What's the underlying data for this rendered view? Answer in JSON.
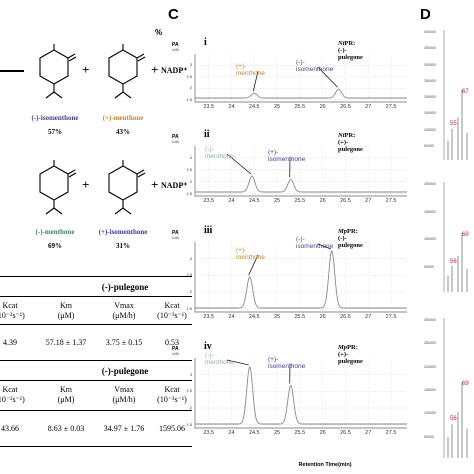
{
  "panel_labels": {
    "c": "C",
    "d": "D"
  },
  "top_left_fragment": "%",
  "reaction1": {
    "products": [
      "(-)-isomenthone",
      "(+)-menthone"
    ],
    "percents": [
      "57%",
      "43%"
    ],
    "cofactor": "NADP⁺",
    "plus": "+"
  },
  "reaction2": {
    "products": [
      "(-)-menthone",
      "(+)-isomenthone"
    ],
    "percents": [
      "69%",
      "31%"
    ],
    "cofactor": "NADP⁺",
    "plus": "+"
  },
  "table1": {
    "title": "(-)-pulegone",
    "headers": [
      [
        "Kcat",
        "(10⁻²s⁻¹)"
      ],
      [
        "Km",
        "(μM)"
      ],
      [
        "Vmax",
        "(μM/h)"
      ],
      [
        "Kcat",
        "(10⁻³s⁻¹)"
      ]
    ],
    "values": [
      "4.39",
      "57.18 ± 1.37",
      "3.75 ± 0.15",
      "0.53"
    ]
  },
  "table2": {
    "title": "(-)-pulegone",
    "headers": [
      [
        "Kcat",
        "(10⁻²s⁻¹)"
      ],
      [
        "Km",
        "(μM)"
      ],
      [
        "Vmax",
        "(μM/h)"
      ],
      [
        "Kcat",
        "(10⁻³s⁻¹)"
      ]
    ],
    "values": [
      "43.66",
      "8.63 ± 0.03",
      "34.97 ± 1.76",
      "1595.06"
    ]
  },
  "chromatograms": {
    "x_ticks": [
      "23.5",
      "24",
      "24.5",
      "25",
      "25.5",
      "26",
      "26.5",
      "27",
      "27.5"
    ],
    "x_label": "Retention Time(min)",
    "y_unit": "PA",
    "y_scale": "×10¹",
    "panels": [
      {
        "roman": "i",
        "title_prefix": "Nt",
        "title_rest": "PR:(-)-pulegone",
        "y_ticks": [
          "3",
          "2.5",
          "2",
          "1.5"
        ],
        "peaks": [
          {
            "label": "(+)-menthone",
            "color": "#c9882b",
            "rt": 24.5,
            "height": 0.12
          },
          {
            "label": "(-)-isomenthone",
            "color": "#4b3f8f",
            "rt": 26.35,
            "height": 0.22
          }
        ]
      },
      {
        "roman": "ii",
        "title_prefix": "Nt",
        "title_rest": "PR:(+)-pulegone",
        "y_ticks": [
          "3",
          "2.5",
          "2",
          "1.5"
        ],
        "peaks": [
          {
            "label": "(-)-menthone",
            "color": "#8fb0a8",
            "rt": 24.45,
            "height": 0.38
          },
          {
            "label": "(+)-isomenthone",
            "color": "#3d3aa6",
            "rt": 25.3,
            "height": 0.3
          }
        ]
      },
      {
        "roman": "iii",
        "title_prefix": "Mp",
        "title_rest": "PR:(-)-pulegone",
        "y_ticks": [
          "3",
          "2.5",
          "2",
          "1.5"
        ],
        "peaks": [
          {
            "label": "(+)-menthone",
            "color": "#c9882b",
            "rt": 24.4,
            "height": 0.5
          },
          {
            "label": "(-)-isomenthone",
            "color": "#4b3f8f",
            "rt": 26.2,
            "height": 0.92
          }
        ]
      },
      {
        "roman": "iv",
        "title_prefix": "Mp",
        "title_rest": "PR:(+)-pulegone",
        "y_ticks": [
          "3",
          "2.5",
          "2",
          "1.5"
        ],
        "peaks": [
          {
            "label": "(-)-menthone",
            "color": "#8fb0a8",
            "rt": 24.4,
            "height": 0.92
          },
          {
            "label": "(+)-isomenthone",
            "color": "#3d3aa6",
            "rt": 25.3,
            "height": 0.62
          }
        ]
      }
    ]
  },
  "mass_spectra": [
    {
      "ticks": [
        "400000",
        "350000",
        "300000",
        "250000",
        "200000",
        "150000",
        "100000",
        "50000"
      ],
      "labels": [
        "55",
        "67"
      ]
    },
    {
      "ticks": [
        "200000",
        "150000",
        "100000",
        "50000"
      ],
      "labels": [
        "56",
        "69"
      ]
    },
    {
      "ticks": [
        "300000",
        "250000",
        "200000",
        "150000",
        "100000",
        "50000"
      ],
      "labels": [
        "56",
        "69"
      ]
    }
  ],
  "colors": {
    "orange": "#c9882b",
    "teal": "#3f7f73",
    "blue": "#3d3aa6",
    "purple": "#4b3f8f",
    "ms_label": "#d01f4e"
  }
}
